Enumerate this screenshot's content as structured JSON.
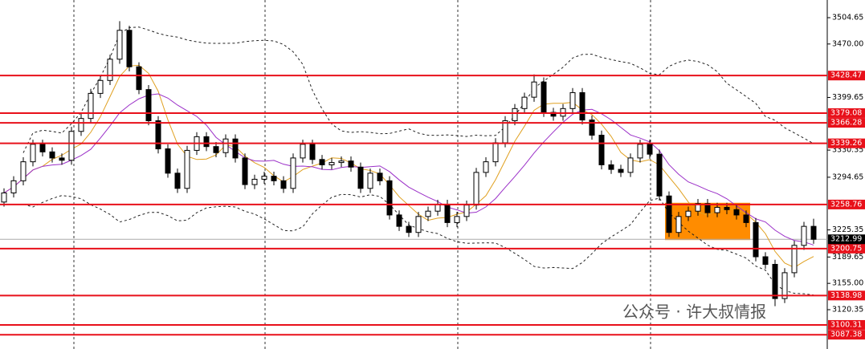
{
  "chart_data": {
    "type": "candlestick",
    "open": [
      3262,
      3274,
      3290,
      3315,
      3338,
      3328,
      3320,
      3317,
      3355,
      3372,
      3405,
      3422,
      3450,
      3488,
      3440,
      3410,
      3369,
      3332,
      3300,
      3280,
      3330,
      3348,
      3335,
      3327,
      3345,
      3320,
      3285,
      3292,
      3296,
      3290,
      3280,
      3320,
      3338,
      3318,
      3311,
      3314,
      3316,
      3308,
      3280,
      3300,
      3290,
      3245,
      3230,
      3222,
      3243,
      3250,
      3259,
      3235,
      3243,
      3258,
      3301,
      3315,
      3340,
      3369,
      3385,
      3400,
      3420,
      3380,
      3375,
      3385,
      3406,
      3370,
      3350,
      3311,
      3305,
      3301,
      3320,
      3338,
      3325,
      3270,
      3222,
      3243,
      3250,
      3260,
      3248,
      3255,
      3252,
      3245,
      3235,
      3190,
      3180,
      3135,
      3169,
      3205,
      3230
    ],
    "high": [
      3280,
      3296,
      3321,
      3344,
      3344,
      3334,
      3326,
      3361,
      3378,
      3411,
      3428,
      3456,
      3500,
      3494,
      3446,
      3416,
      3375,
      3338,
      3306,
      3336,
      3354,
      3354,
      3341,
      3351,
      3351,
      3326,
      3298,
      3302,
      3302,
      3296,
      3326,
      3344,
      3344,
      3324,
      3320,
      3322,
      3322,
      3314,
      3306,
      3306,
      3296,
      3251,
      3236,
      3249,
      3256,
      3265,
      3265,
      3249,
      3264,
      3307,
      3321,
      3346,
      3375,
      3391,
      3406,
      3430,
      3426,
      3386,
      3391,
      3412,
      3412,
      3376,
      3356,
      3317,
      3311,
      3326,
      3344,
      3344,
      3331,
      3276,
      3249,
      3256,
      3266,
      3266,
      3261,
      3261,
      3258,
      3251,
      3241,
      3196,
      3186,
      3175,
      3211,
      3236,
      3240
    ],
    "low": [
      3256,
      3268,
      3284,
      3309,
      3322,
      3314,
      3311,
      3311,
      3349,
      3366,
      3399,
      3416,
      3444,
      3434,
      3404,
      3363,
      3326,
      3294,
      3274,
      3274,
      3324,
      3329,
      3321,
      3321,
      3314,
      3279,
      3279,
      3286,
      3284,
      3274,
      3274,
      3314,
      3312,
      3305,
      3305,
      3308,
      3302,
      3274,
      3274,
      3284,
      3239,
      3224,
      3216,
      3216,
      3237,
      3244,
      3229,
      3229,
      3237,
      3252,
      3295,
      3309,
      3334,
      3363,
      3379,
      3394,
      3374,
      3369,
      3369,
      3379,
      3364,
      3344,
      3305,
      3299,
      3295,
      3295,
      3314,
      3319,
      3264,
      3216,
      3216,
      3237,
      3244,
      3242,
      3242,
      3246,
      3239,
      3229,
      3184,
      3174,
      3125,
      3129,
      3163,
      3199,
      3207
    ],
    "close": [
      3274,
      3290,
      3315,
      3338,
      3328,
      3320,
      3317,
      3355,
      3372,
      3405,
      3422,
      3450,
      3488,
      3440,
      3410,
      3369,
      3332,
      3300,
      3280,
      3330,
      3348,
      3335,
      3327,
      3345,
      3320,
      3285,
      3292,
      3296,
      3290,
      3280,
      3320,
      3338,
      3318,
      3311,
      3314,
      3316,
      3308,
      3280,
      3300,
      3290,
      3245,
      3230,
      3222,
      3243,
      3250,
      3259,
      3235,
      3243,
      3258,
      3301,
      3315,
      3340,
      3369,
      3385,
      3400,
      3420,
      3380,
      3375,
      3385,
      3406,
      3370,
      3350,
      3311,
      3305,
      3301,
      3320,
      3338,
      3325,
      3270,
      3222,
      3243,
      3250,
      3260,
      3248,
      3255,
      3252,
      3245,
      3235,
      3190,
      3180,
      3135,
      3169,
      3205,
      3230,
      3212.99
    ],
    "ylim": [
      3068.6,
      3527.9
    ],
    "yticks": [
      3504.65,
      {
        "value": 3470,
        "label": "3470.00"
      },
      3399.65,
      3330.35,
      3294.65,
      3225.35,
      3189.65,
      {
        "value": 3155,
        "label": "3155.00"
      },
      3120.35
    ],
    "levels": [
      3428.47,
      3379.08,
      3366.28,
      3339.26,
      3258.76,
      3200.75,
      3138.98,
      3100.31,
      3087.38
    ],
    "level_color": "#e8101a",
    "last": 3212.99,
    "zone": {
      "low": 3212,
      "high": 3261,
      "first": 69,
      "last": 77,
      "color": "#ff8c00"
    },
    "ma": [
      {
        "period": 5,
        "color": "#e0a020"
      },
      {
        "period": 10,
        "color": "#9b30c8"
      }
    ],
    "bands": {
      "period": 20,
      "width": 2,
      "color": "#222222"
    },
    "watermark": "公众号 · 许大叔情报"
  }
}
